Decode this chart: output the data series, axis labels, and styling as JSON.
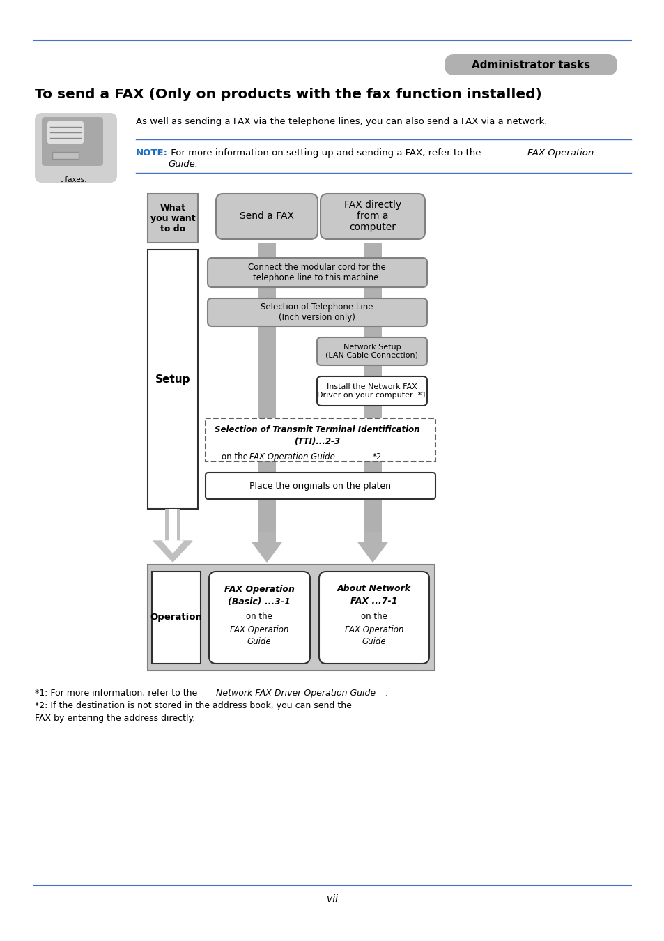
{
  "page_bg": "#ffffff",
  "top_line_color": "#4472c4",
  "bottom_line_color": "#4472c4",
  "admin_badge_text": "Administrator tasks",
  "admin_badge_bg": "#b0b0b0",
  "title": "To send a FAX (Only on products with the fax function installed)",
  "desc_text": "As well as sending a FAX via the telephone lines, you can also send a FAX via a network.",
  "note_label": "NOTE:",
  "note_label_color": "#1a6ec2",
  "note_text": " For more information on setting up and sending a FAX, refer to the ",
  "note_italic1": "FAX Operation",
  "note_italic2": "Guide",
  "note_line_color": "#4472c4",
  "box_gray_bg": "#c8c8c8",
  "box_gray_border": "#808080",
  "box_white_bg": "#ffffff",
  "box_white_border": "#303030",
  "arrow_color": "#b0b0b0",
  "label_what_line1": "What",
  "label_what_line2": "you want",
  "label_what_line3": "to do",
  "label_send": "Send a FAX",
  "label_fax_direct_line1": "FAX directly",
  "label_fax_direct_line2": "from a",
  "label_fax_direct_line3": "computer",
  "label_connect_line1": "Connect the modular cord for the",
  "label_connect_line2": "telephone line to this machine.",
  "label_tel_line1": "Selection of Telephone Line",
  "label_tel_line2": "(Inch version only)",
  "label_network_line1": "Network Setup",
  "label_network_line2": "(LAN Cable Connection)",
  "label_install_line1": "Install the Network FAX",
  "label_install_line2": "Driver on your computer  *1",
  "label_platen": "Place the originals on the platen",
  "setup_label": "Setup",
  "operation_label": "Operation",
  "op_box1_line1": "FAX Operation",
  "op_box1_line2": "(Basic) ...3-1",
  "op_box1_line3": "on the ",
  "op_box1_italic1": "FAX Operation",
  "op_box1_italic2": "Guide",
  "op_box2_line1": "About Network",
  "op_box2_line2": "FAX ...7-1",
  "op_box2_line3": "on the ",
  "op_box2_italic1": "FAX Operation",
  "op_box2_italic2": "Guide",
  "footnote1a": "*1: For more information, refer to the ",
  "footnote1b": "Network FAX Driver Operation Guide",
  "footnote1c": ".",
  "footnote2a": "*2: If the destination is not stored in the address book, you can send the",
  "footnote2b": "FAX by entering the address directly.",
  "page_num": "vii",
  "fig_w": 9.54,
  "fig_h": 13.5,
  "dpi": 100
}
